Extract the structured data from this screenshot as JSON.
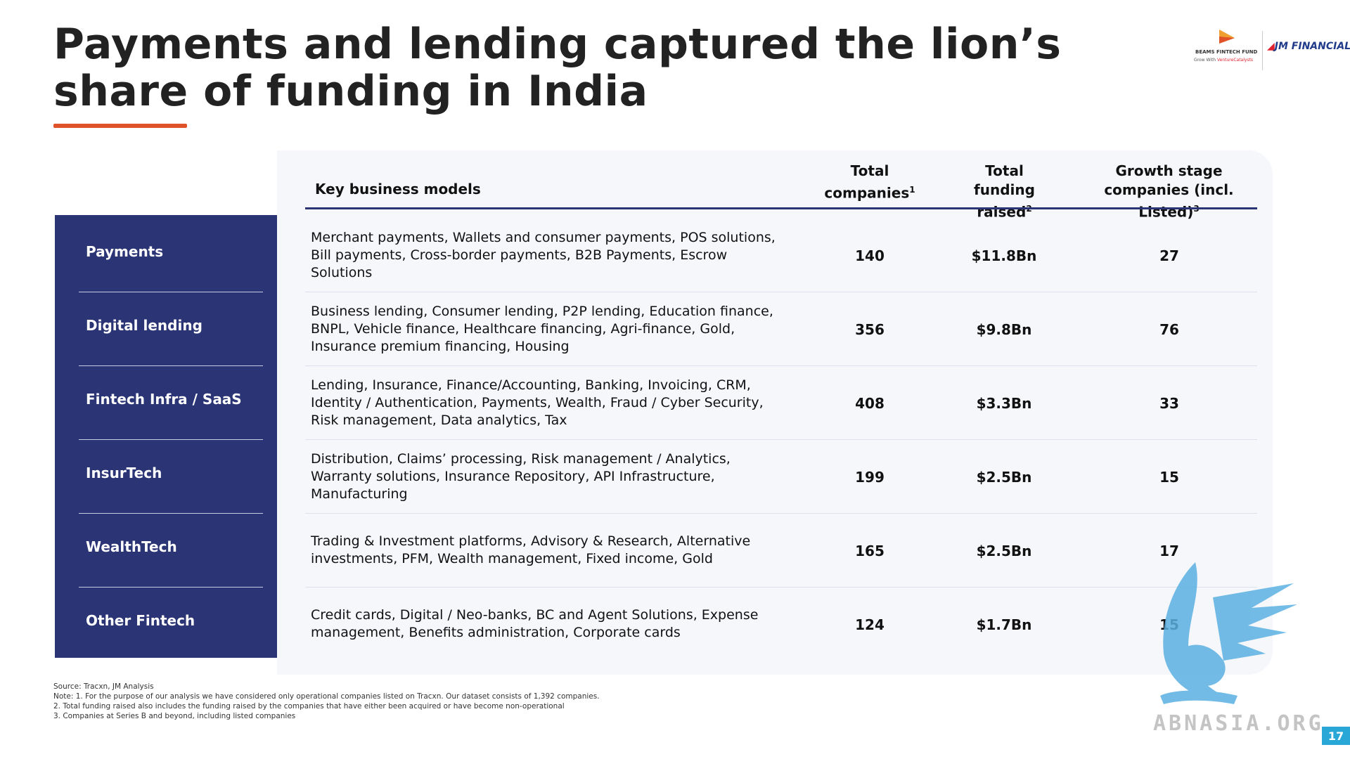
{
  "title": "Payments and lending captured the lion’s share of funding in India",
  "logos": {
    "beams_name": "BEAMS FINTECH FUND",
    "beams_sub": "Grow With",
    "beams_partner": "VentureCatalysts",
    "jm": "JM FINANCIAL"
  },
  "table": {
    "headers": {
      "models": "Key business models",
      "companies": "Total companies",
      "companies_sup": "1",
      "funding": "Total funding raised",
      "funding_sup": "2",
      "growth": "Growth stage companies (incl. Listed)",
      "growth_sup": "3"
    },
    "rows": [
      {
        "category": "Payments",
        "models": "Merchant payments, Wallets and consumer payments, POS solutions, Bill payments, Cross-border payments, B2B Payments, Escrow Solutions",
        "companies": "140",
        "funding": "$11.8Bn",
        "growth": "27"
      },
      {
        "category": "Digital lending",
        "models": "Business lending, Consumer lending, P2P lending, Education finance, BNPL, Vehicle finance, Healthcare financing, Agri-finance, Gold, Insurance premium financing, Housing",
        "companies": "356",
        "funding": "$9.8Bn",
        "growth": "76"
      },
      {
        "category": "Fintech Infra / SaaS",
        "models": "Lending, Insurance, Finance/Accounting, Banking, Invoicing, CRM, Identity / Authentication, Payments, Wealth, Fraud / Cyber Security, Risk management, Data analytics, Tax",
        "companies": "408",
        "funding": "$3.3Bn",
        "growth": "33"
      },
      {
        "category": "InsurTech",
        "models": "Distribution, Claims’ processing, Risk management / Analytics, Warranty solutions, Insurance Repository, API Infrastructure, Manufacturing",
        "companies": "199",
        "funding": "$2.5Bn",
        "growth": "15"
      },
      {
        "category": "WealthTech",
        "models": "Trading & Investment platforms, Advisory & Research, Alternative investments, PFM, Wealth management, Fixed income, Gold",
        "companies": "165",
        "funding": "$2.5Bn",
        "growth": "17"
      },
      {
        "category": "Other Fintech",
        "models": "Credit cards, Digital / Neo-banks, BC and Agent Solutions, Expense management, Benefits administration, Corporate cards",
        "companies": "124",
        "funding": "$1.7Bn",
        "growth": "15"
      }
    ]
  },
  "footnotes": {
    "source": "Source: Tracxn, JM Analysis",
    "note1": "Note: 1. For the purpose of our analysis we have considered only operational companies listed on Tracxn. Our dataset consists of 1,392 companies.",
    "note2": "2. Total funding raised also includes the funding raised by the companies that have either been acquired or have become non-operational",
    "note3": "3. Companies at Series B and beyond, including listed companies"
  },
  "watermark": "ABNASIA.ORG",
  "page_number": "17",
  "colors": {
    "navy": "#2b3475",
    "accent": "#e0522a",
    "card": "#f5f7fb"
  }
}
